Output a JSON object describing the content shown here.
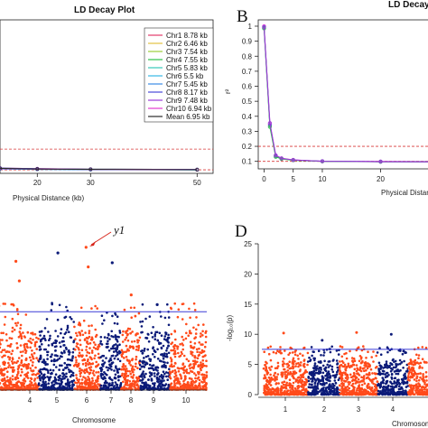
{
  "panels": {
    "b": "B",
    "d": "D"
  },
  "annotation": {
    "label": "y1",
    "color": "#d8261b"
  },
  "colors": {
    "chr_odd": "#ff4a1a",
    "chr_even": "#0b1a78",
    "threshold": "#3b3bd6",
    "cutoff": "#d83a3a"
  },
  "chart_data": [
    {
      "type": "line",
      "title": "LD Decay Plot",
      "xlabel": "Physical Distance (kb)",
      "ylabel": "",
      "xlim": [
        13,
        53
      ],
      "ylim": [
        0.05,
        1.0
      ],
      "x_ticks": [
        20,
        30,
        50
      ],
      "y_ticks": [],
      "reference_lines": [
        0.1,
        0.2
      ],
      "legend_position": "top-right",
      "series": [
        {
          "name": "Chr1 8.78 kb",
          "color": "#e23a6a",
          "x": [
            13,
            20,
            30,
            50
          ],
          "y": [
            0.108,
            0.104,
            0.101,
            0.099
          ]
        },
        {
          "name": "Chr2 6.46 kb",
          "color": "#e3c043",
          "x": [
            13,
            20,
            30,
            50
          ],
          "y": [
            0.105,
            0.102,
            0.1,
            0.098
          ]
        },
        {
          "name": "Chr3 7.54 kb",
          "color": "#9ccf3a",
          "x": [
            13,
            20,
            30,
            50
          ],
          "y": [
            0.106,
            0.103,
            0.1,
            0.098
          ]
        },
        {
          "name": "Chr4 7.55 kb",
          "color": "#2ec34a",
          "x": [
            13,
            20,
            30,
            50
          ],
          "y": [
            0.107,
            0.103,
            0.101,
            0.099
          ]
        },
        {
          "name": "Chr5 5.83 kb",
          "color": "#36c7b9",
          "x": [
            13,
            20,
            30,
            50
          ],
          "y": [
            0.104,
            0.101,
            0.099,
            0.097
          ]
        },
        {
          "name": "Chr6 5.5 kb",
          "color": "#35b6e6",
          "x": [
            13,
            20,
            30,
            50
          ],
          "y": [
            0.103,
            0.1,
            0.099,
            0.097
          ]
        },
        {
          "name": "Chr7 5.45 kb",
          "color": "#3a8ce6",
          "x": [
            13,
            20,
            30,
            50
          ],
          "y": [
            0.103,
            0.1,
            0.098,
            0.097
          ]
        },
        {
          "name": "Chr8 8.17 kb",
          "color": "#4a4ad8",
          "x": [
            13,
            20,
            30,
            50
          ],
          "y": [
            0.108,
            0.104,
            0.101,
            0.099
          ]
        },
        {
          "name": "Chr9 7.48 kb",
          "color": "#9b3ad8",
          "x": [
            13,
            20,
            30,
            50
          ],
          "y": [
            0.106,
            0.103,
            0.1,
            0.098
          ]
        },
        {
          "name": "Chr10 6.94 kb",
          "color": "#e23ad0",
          "x": [
            13,
            20,
            30,
            50
          ],
          "y": [
            0.105,
            0.102,
            0.1,
            0.098
          ]
        },
        {
          "name": "Mean 6.95 kb",
          "color": "#2b2b2b",
          "x": [
            13,
            20,
            30,
            50
          ],
          "y": [
            0.106,
            0.102,
            0.1,
            0.098
          ]
        }
      ]
    },
    {
      "type": "line",
      "title": "LD Decay",
      "xlabel": "Physical Distanc",
      "ylabel": "r²",
      "xlim": [
        -1,
        30
      ],
      "ylim": [
        0.05,
        1.03
      ],
      "x_ticks": [
        0,
        5,
        10,
        20
      ],
      "y_ticks": [
        0.1,
        0.2,
        0.3,
        0.4,
        0.5,
        0.6,
        0.7,
        0.8,
        0.9,
        1
      ],
      "reference_lines": [
        0.1,
        0.2
      ],
      "series": [
        {
          "color": "#e23ad0",
          "x": [
            0,
            1,
            2,
            3,
            5,
            10,
            20,
            30
          ],
          "y": [
            1.0,
            0.35,
            0.14,
            0.12,
            0.11,
            0.1,
            0.099,
            0.098
          ]
        },
        {
          "color": "#4a4ad8",
          "x": [
            0,
            1,
            2,
            3,
            5,
            10,
            20,
            30
          ],
          "y": [
            0.99,
            0.34,
            0.135,
            0.118,
            0.108,
            0.101,
            0.098,
            0.097
          ]
        },
        {
          "color": "#2ec34a",
          "x": [
            0,
            1,
            2,
            3,
            5,
            10,
            20,
            30
          ],
          "y": [
            0.985,
            0.33,
            0.13,
            0.116,
            0.107,
            0.1,
            0.097,
            0.097
          ]
        },
        {
          "color": "#9b3ad8",
          "x": [
            0,
            1,
            2,
            3,
            5,
            10,
            20,
            30
          ],
          "y": [
            0.995,
            0.355,
            0.14,
            0.12,
            0.109,
            0.101,
            0.098,
            0.097
          ]
        }
      ]
    },
    {
      "type": "scatter",
      "title": "",
      "xlabel": "Chromosome",
      "ylabel": "",
      "categories": [
        "4",
        "5",
        "6",
        "7",
        "8",
        "9",
        "10"
      ],
      "ylim": [
        0,
        12
      ],
      "threshold": 5.6,
      "top_points": [
        {
          "chromosome": "4",
          "value": 9.2
        },
        {
          "chromosome": "4",
          "value": 7.8
        },
        {
          "chromosome": "5",
          "value": 9.8
        },
        {
          "chromosome": "6",
          "value": 10.2
        },
        {
          "chromosome": "6",
          "value": 8.8
        },
        {
          "chromosome": "7",
          "value": 9.1
        },
        {
          "chromosome": "8",
          "value": 6.8
        },
        {
          "chromosome": "9",
          "value": 6.1
        }
      ]
    },
    {
      "type": "scatter",
      "title": "",
      "xlabel": "Chromosome",
      "ylabel": "-log₁₀(p)",
      "categories": [
        "1",
        "2",
        "3",
        "4"
      ],
      "ylim": [
        0,
        25
      ],
      "y_ticks": [
        0,
        5,
        10,
        15,
        20,
        25
      ],
      "threshold": 7.5,
      "top_points": [
        {
          "chromosome": "1",
          "value": 10.2
        },
        {
          "chromosome": "2",
          "value": 9.0
        },
        {
          "chromosome": "3",
          "value": 10.3
        },
        {
          "chromosome": "4",
          "value": 10.0
        }
      ]
    }
  ]
}
